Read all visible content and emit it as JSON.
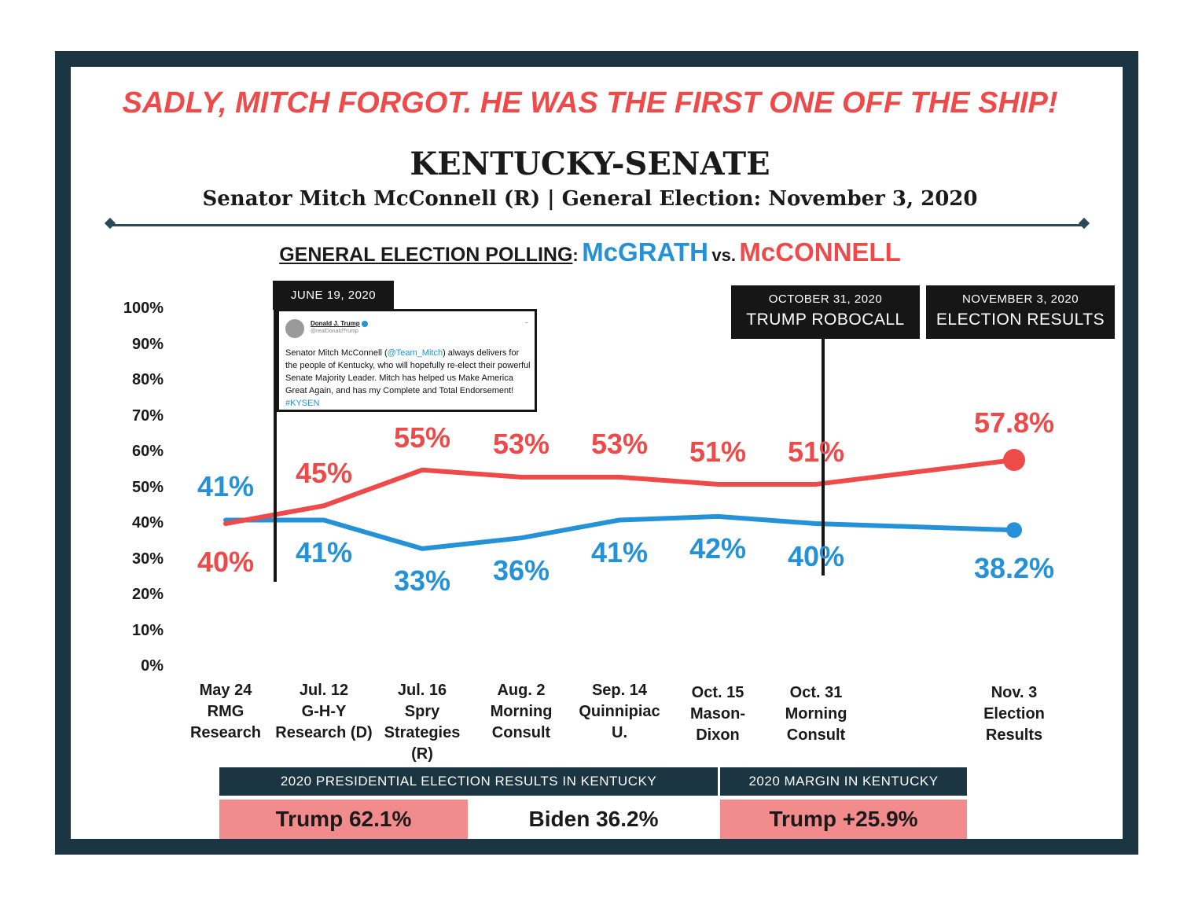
{
  "headline": "SADLY, MITCH FORGOT. HE WAS THE FIRST ONE OFF THE SHIP!",
  "title": "KENTUCKY-SENATE",
  "subtitle": "Senator Mitch McConnell (R) | General Election: November 3, 2020",
  "polling_heading": {
    "label": "GENERAL ELECTION POLLING",
    "colon": ":",
    "mcgrath": "McGRATH",
    "vs": "vs.",
    "mcconnell": "McCONNELL"
  },
  "colors": {
    "mcgrath": "#2591d6",
    "mcconnell": "#ef4a4a",
    "navy": "#1b3542",
    "pink": "#f28b8b"
  },
  "annotations": {
    "june": {
      "date": "JUNE 19, 2020"
    },
    "october": {
      "date": "OCTOBER 31, 2020",
      "label": "TRUMP ROBOCALL"
    },
    "november": {
      "date": "NOVEMBER 3, 2020",
      "label": "ELECTION RESULTS"
    }
  },
  "tweet": {
    "name": "Donald J. Trump",
    "handle": "@realDonaldTrump",
    "text_before": "Senator Mitch McConnell (",
    "mention": "@Team_Mitch",
    "text_after": ") always delivers for the people of Kentucky, who will hopefully re-elect their powerful Senate Majority Leader. Mitch has helped us Make America Great Again, and has my Complete and Total Endorsement! ",
    "hashtag": "#KYSEN"
  },
  "chart_data": {
    "type": "line",
    "y_ticks": [
      "100%",
      "90%",
      "80%",
      "70%",
      "60%",
      "50%",
      "40%",
      "30%",
      "20%",
      "10%",
      "0%"
    ],
    "ylim": [
      0,
      100
    ],
    "categories": [
      [
        "May 24",
        "RMG",
        "Research"
      ],
      [
        "Jul. 12",
        "G-H-Y",
        "Research (D)"
      ],
      [
        "Jul. 16",
        "Spry",
        "Strategies",
        "(R)"
      ],
      [
        "Aug. 2",
        "Morning",
        "Consult"
      ],
      [
        "Sep. 14",
        "Quinnipiac",
        "U."
      ],
      [
        "Oct. 15",
        "Mason-",
        "Dixon"
      ],
      [
        "Oct. 31",
        "Morning",
        "Consult"
      ],
      [
        "Nov. 3",
        "Election",
        "Results"
      ]
    ],
    "series": [
      {
        "name": "McGRATH",
        "values": [
          41,
          41,
          33,
          36,
          41,
          42,
          40,
          38.2
        ],
        "labels": [
          "41%",
          "41%",
          "33%",
          "36%",
          "41%",
          "42%",
          "40%",
          "38.2%"
        ]
      },
      {
        "name": "McCONNELL",
        "values": [
          40,
          45,
          55,
          53,
          53,
          51,
          51,
          57.8
        ],
        "labels": [
          "40%",
          "45%",
          "55%",
          "53%",
          "53%",
          "51%",
          "51%",
          "57.8%"
        ]
      }
    ]
  },
  "results_table": {
    "presidential_header": "2020 PRESIDENTIAL ELECTION RESULTS IN KENTUCKY",
    "margin_header": "2020 MARGIN IN KENTUCKY",
    "trump": "Trump 62.1%",
    "biden": "Biden 36.2%",
    "margin": "Trump +25.9%"
  }
}
